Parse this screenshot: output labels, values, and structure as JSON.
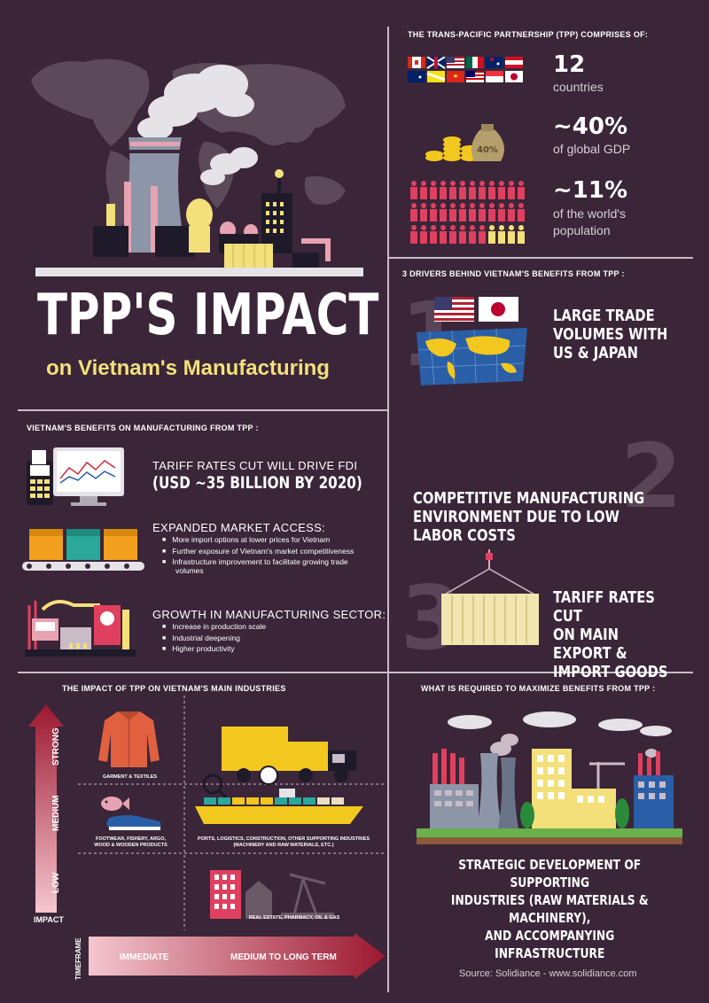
{
  "hero": {
    "title": "TPP'S IMPACT",
    "subtitle": "on Vietnam's Manufacturing"
  },
  "composition": {
    "title": "THE TRANS-PACIFIC PARTNERSHIP (TPP) COMPRISES OF:",
    "countries_value": "12",
    "countries_label": "countries",
    "gdp_value": "~40%",
    "gdp_label": "of global GDP",
    "gdp_bag_label": "40%",
    "population_value": "~11%",
    "population_label_1": "of the world's",
    "population_label_2": "population"
  },
  "benefits": {
    "title": "VIETNAM'S BENEFITS ON MANUFACTURING FROM TPP :",
    "item1_title": "TARIFF RATES CUT WILL DRIVE FDI",
    "item1_value": "(USD ~35 BILLION BY 2020)",
    "item2_title": "EXPANDED MARKET ACCESS:",
    "item2_bullets": [
      "More import options at lower prices for Vietnam",
      "Further exposure of Vietnam's market competitiveness",
      "Infrastructure improvement to facilitate growing trade",
      "volumes"
    ],
    "item3_title": "GROWTH IN MANUFACTURING SECTOR:",
    "item3_bullets": [
      "Increase in production scale",
      "Industrial deepening",
      "Higher productivity"
    ]
  },
  "drivers": {
    "title": "3 DRIVERS BEHIND VIETNAM'S BENEFITS FROM TPP :",
    "d1_num": "1",
    "d1_lines": [
      "LARGE TRADE",
      "VOLUMES WITH",
      "US & JAPAN"
    ],
    "d2_num": "2",
    "d2_lines": [
      "COMPETITIVE MANUFACTURING",
      "ENVIRONMENT DUE TO LOW LABOR COSTS"
    ],
    "d3_num": "3",
    "d3_lines": [
      "TARIFF RATES CUT",
      "ON MAIN EXPORT &",
      "IMPORT GOODS"
    ]
  },
  "industries": {
    "title": "THE IMPACT OF TPP ON VIETNAM'S MAIN INDUSTRIES",
    "impact_strong": "STRONG",
    "impact_medium": "MEDIUM",
    "impact_low": "LOW",
    "impact_label": "IMPACT",
    "timeframe_label": "TIMEFRAME",
    "timeframe_immediate": "IMMEDIATE",
    "timeframe_long": "MEDIUM TO LONG TERM",
    "garment": "GARMENT & TEXTILES",
    "footwear_1": "FOOTWEAR, FISHERY, ARGO,",
    "footwear_2": "WOOD & WOODEN PRODUCTS",
    "ports_1": "PORTS, LOGISTICS, CONSTRUCTION, OTHER SUPPORTING INDUSTRIES",
    "ports_2": "(MACHINERY AND RAW MATERIALS, ETC.)",
    "realestate": "REAL ESTATE, PHARMACY, OIL & GAS"
  },
  "required": {
    "title": "WHAT IS REQUIRED TO MAXIMIZE BENEFITS FROM TPP :",
    "lines": [
      "STRATEGIC DEVELOPMENT OF SUPPORTING",
      "INDUSTRIES (RAW MATERIALS & MACHINERY),",
      "AND ACCOMPANYING INFRASTRUCTURE"
    ]
  },
  "source": "Source: Solidiance - www.solidiance.com",
  "colors": {
    "background": "#3a2638",
    "accent_yellow": "#f3e07a",
    "accent_red": "#9c1830",
    "accent_pink": "#e8a3b3",
    "divider": "#c9bcc6"
  }
}
